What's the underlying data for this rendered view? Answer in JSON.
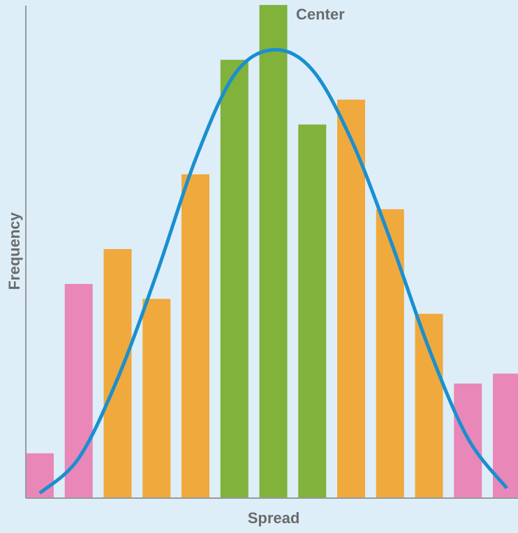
{
  "chart_data": {
    "type": "bar",
    "annotation": "Center",
    "x_label": "Spread",
    "y_label": "Frequency",
    "categories": [
      null,
      null,
      null,
      null,
      null,
      null,
      null,
      null,
      null,
      null,
      null,
      null,
      null
    ],
    "values": [
      9,
      43,
      50,
      40,
      65,
      88,
      99,
      75,
      80,
      58,
      37,
      23,
      25
    ],
    "colors": [
      "#e987b8",
      "#e987b8",
      "#f0a93c",
      "#f0a93c",
      "#f0a93c",
      "#80b23c",
      "#80b23c",
      "#80b23c",
      "#f0a93c",
      "#f0a93c",
      "#f0a93c",
      "#e987b8",
      "#e987b8"
    ],
    "curve": {
      "color": "#1a8fd0",
      "values": [
        1,
        8,
        24,
        45,
        68,
        85,
        90,
        86,
        72,
        52,
        30,
        12,
        2
      ]
    },
    "ylim": [
      0,
      100
    ]
  }
}
